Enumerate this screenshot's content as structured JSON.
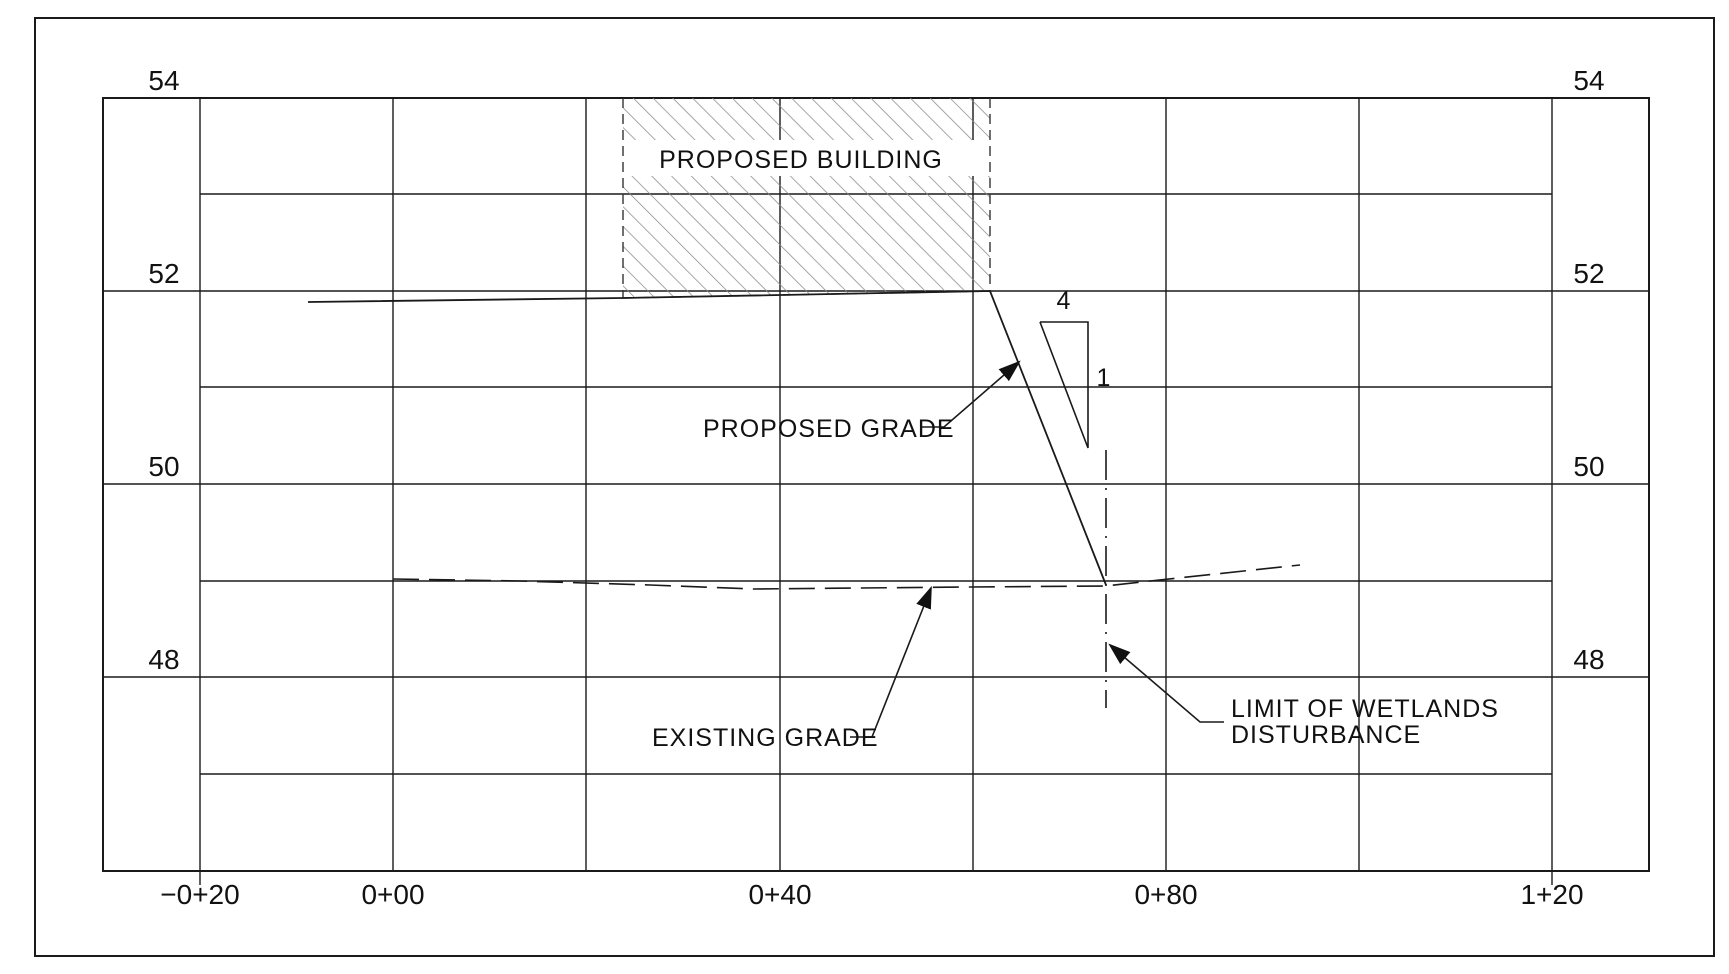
{
  "colors": {
    "ink": "#1a1a1a",
    "paper": "#ffffff",
    "hatch": "#8a8a8a"
  },
  "elevation_labels": {
    "e54": "54",
    "e52": "52",
    "e50": "50",
    "e48": "48"
  },
  "station_labels": {
    "s_m020": "−0+20",
    "s_000": "0+00",
    "s_040": "0+40",
    "s_080": "0+80",
    "s_120": "1+20"
  },
  "annotations": {
    "proposed_building": "PROPOSED BUILDING",
    "proposed_grade": "PROPOSED GRADE",
    "existing_grade": "EXISTING GRADE",
    "limit_line1": "LIMIT OF WETLANDS",
    "limit_line2": "DISTURBANCE",
    "slope_run": "4",
    "slope_rise": "1"
  }
}
